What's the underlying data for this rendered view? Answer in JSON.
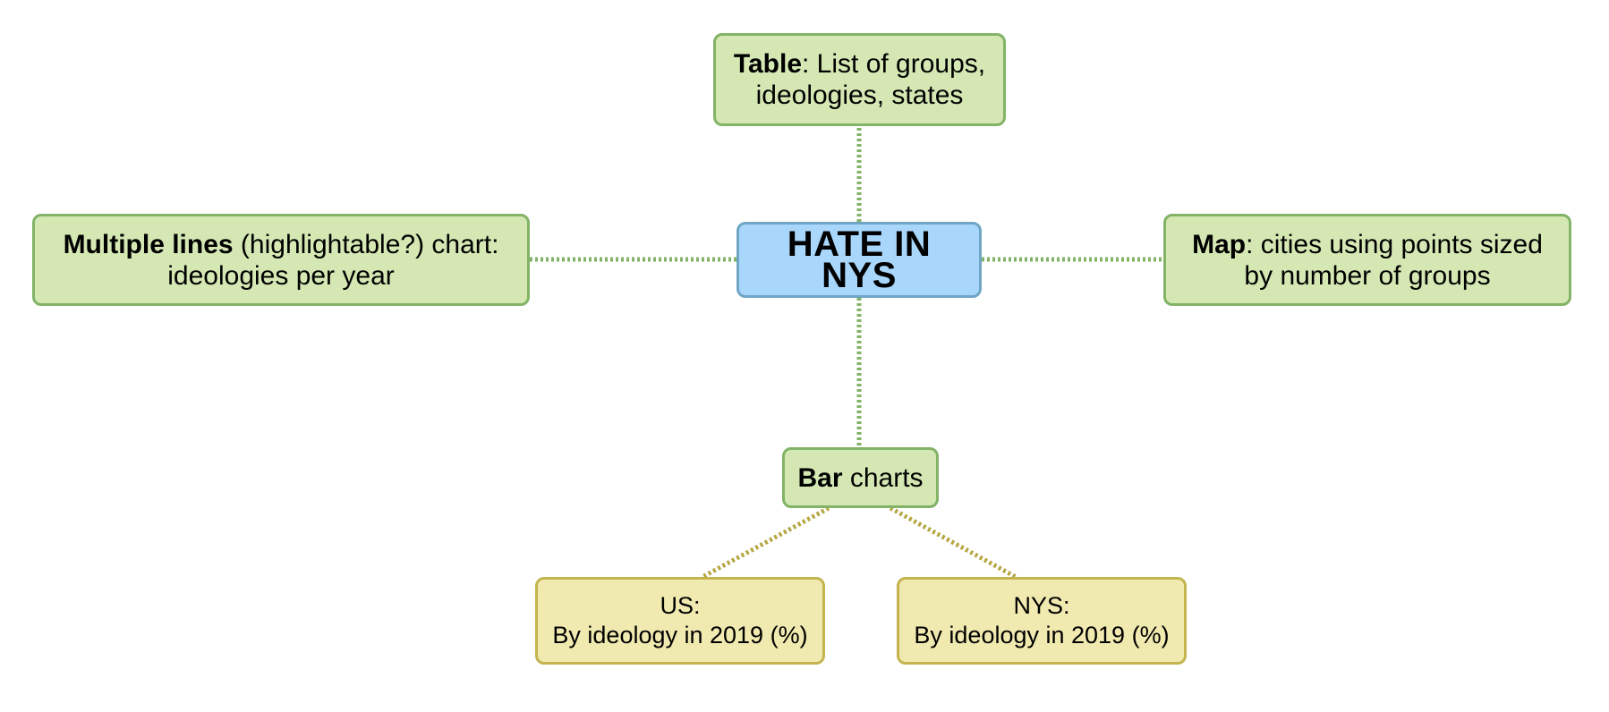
{
  "center": {
    "label": "HATE IN NYS"
  },
  "table_node": {
    "bold": "Table",
    "text": ": List of groups,",
    "line2": "ideologies, states"
  },
  "lines_node": {
    "bold": "Multiple lines",
    "text": " (highlightable?) chart:",
    "line2": "ideologies per year"
  },
  "map_node": {
    "bold": "Map",
    "text": ": cities using points sized",
    "line2": "by number of groups"
  },
  "bar_node": {
    "bold": "Bar",
    "text": " charts"
  },
  "us_node": {
    "line1": "US:",
    "line2": "By ideology in 2019 (%)"
  },
  "nys_node": {
    "line1": "NYS:",
    "line2": "By ideology in 2019 (%)"
  },
  "colors": {
    "green_connector": "#82b366",
    "yellow_connector": "#b5a640",
    "green_fill": "#d5e8b4",
    "blue_fill": "#a9d6fb",
    "yellow_fill": "#f1eab0"
  }
}
